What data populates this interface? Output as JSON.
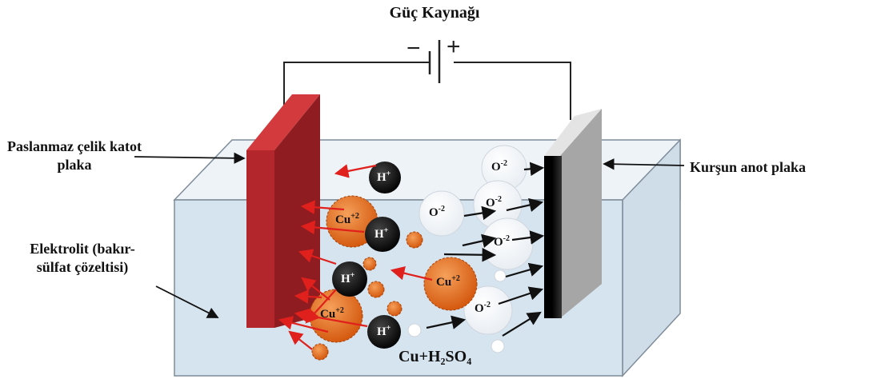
{
  "title": "Güç Kaynağı",
  "power_source": {
    "negative_sign": "−",
    "positive_sign": "+"
  },
  "labels": {
    "cathode": "Paslanmaz çelik katot plaka",
    "anode": "Kurşun anot plaka",
    "electrolyte": "Elektrolit (bakır-sülfat çözeltisi)",
    "solution": "Cu+H₂SO₄"
  },
  "ions": {
    "h_plus": {
      "symbol": "H",
      "charge": "+"
    },
    "cu": {
      "symbol": "Cu",
      "charge": "+2"
    },
    "o": {
      "symbol": "O",
      "charge": "-2"
    }
  },
  "colors": {
    "cathode": "#b3262b",
    "anode": "#a6a6a6",
    "electrolyte": "#d6e4ef",
    "cu_ion": "#e8731f",
    "h_ion": "#151515",
    "o_ion": "#ffffff",
    "arrow_to_cathode": "#e0201c",
    "arrow_to_anode": "#111111"
  }
}
